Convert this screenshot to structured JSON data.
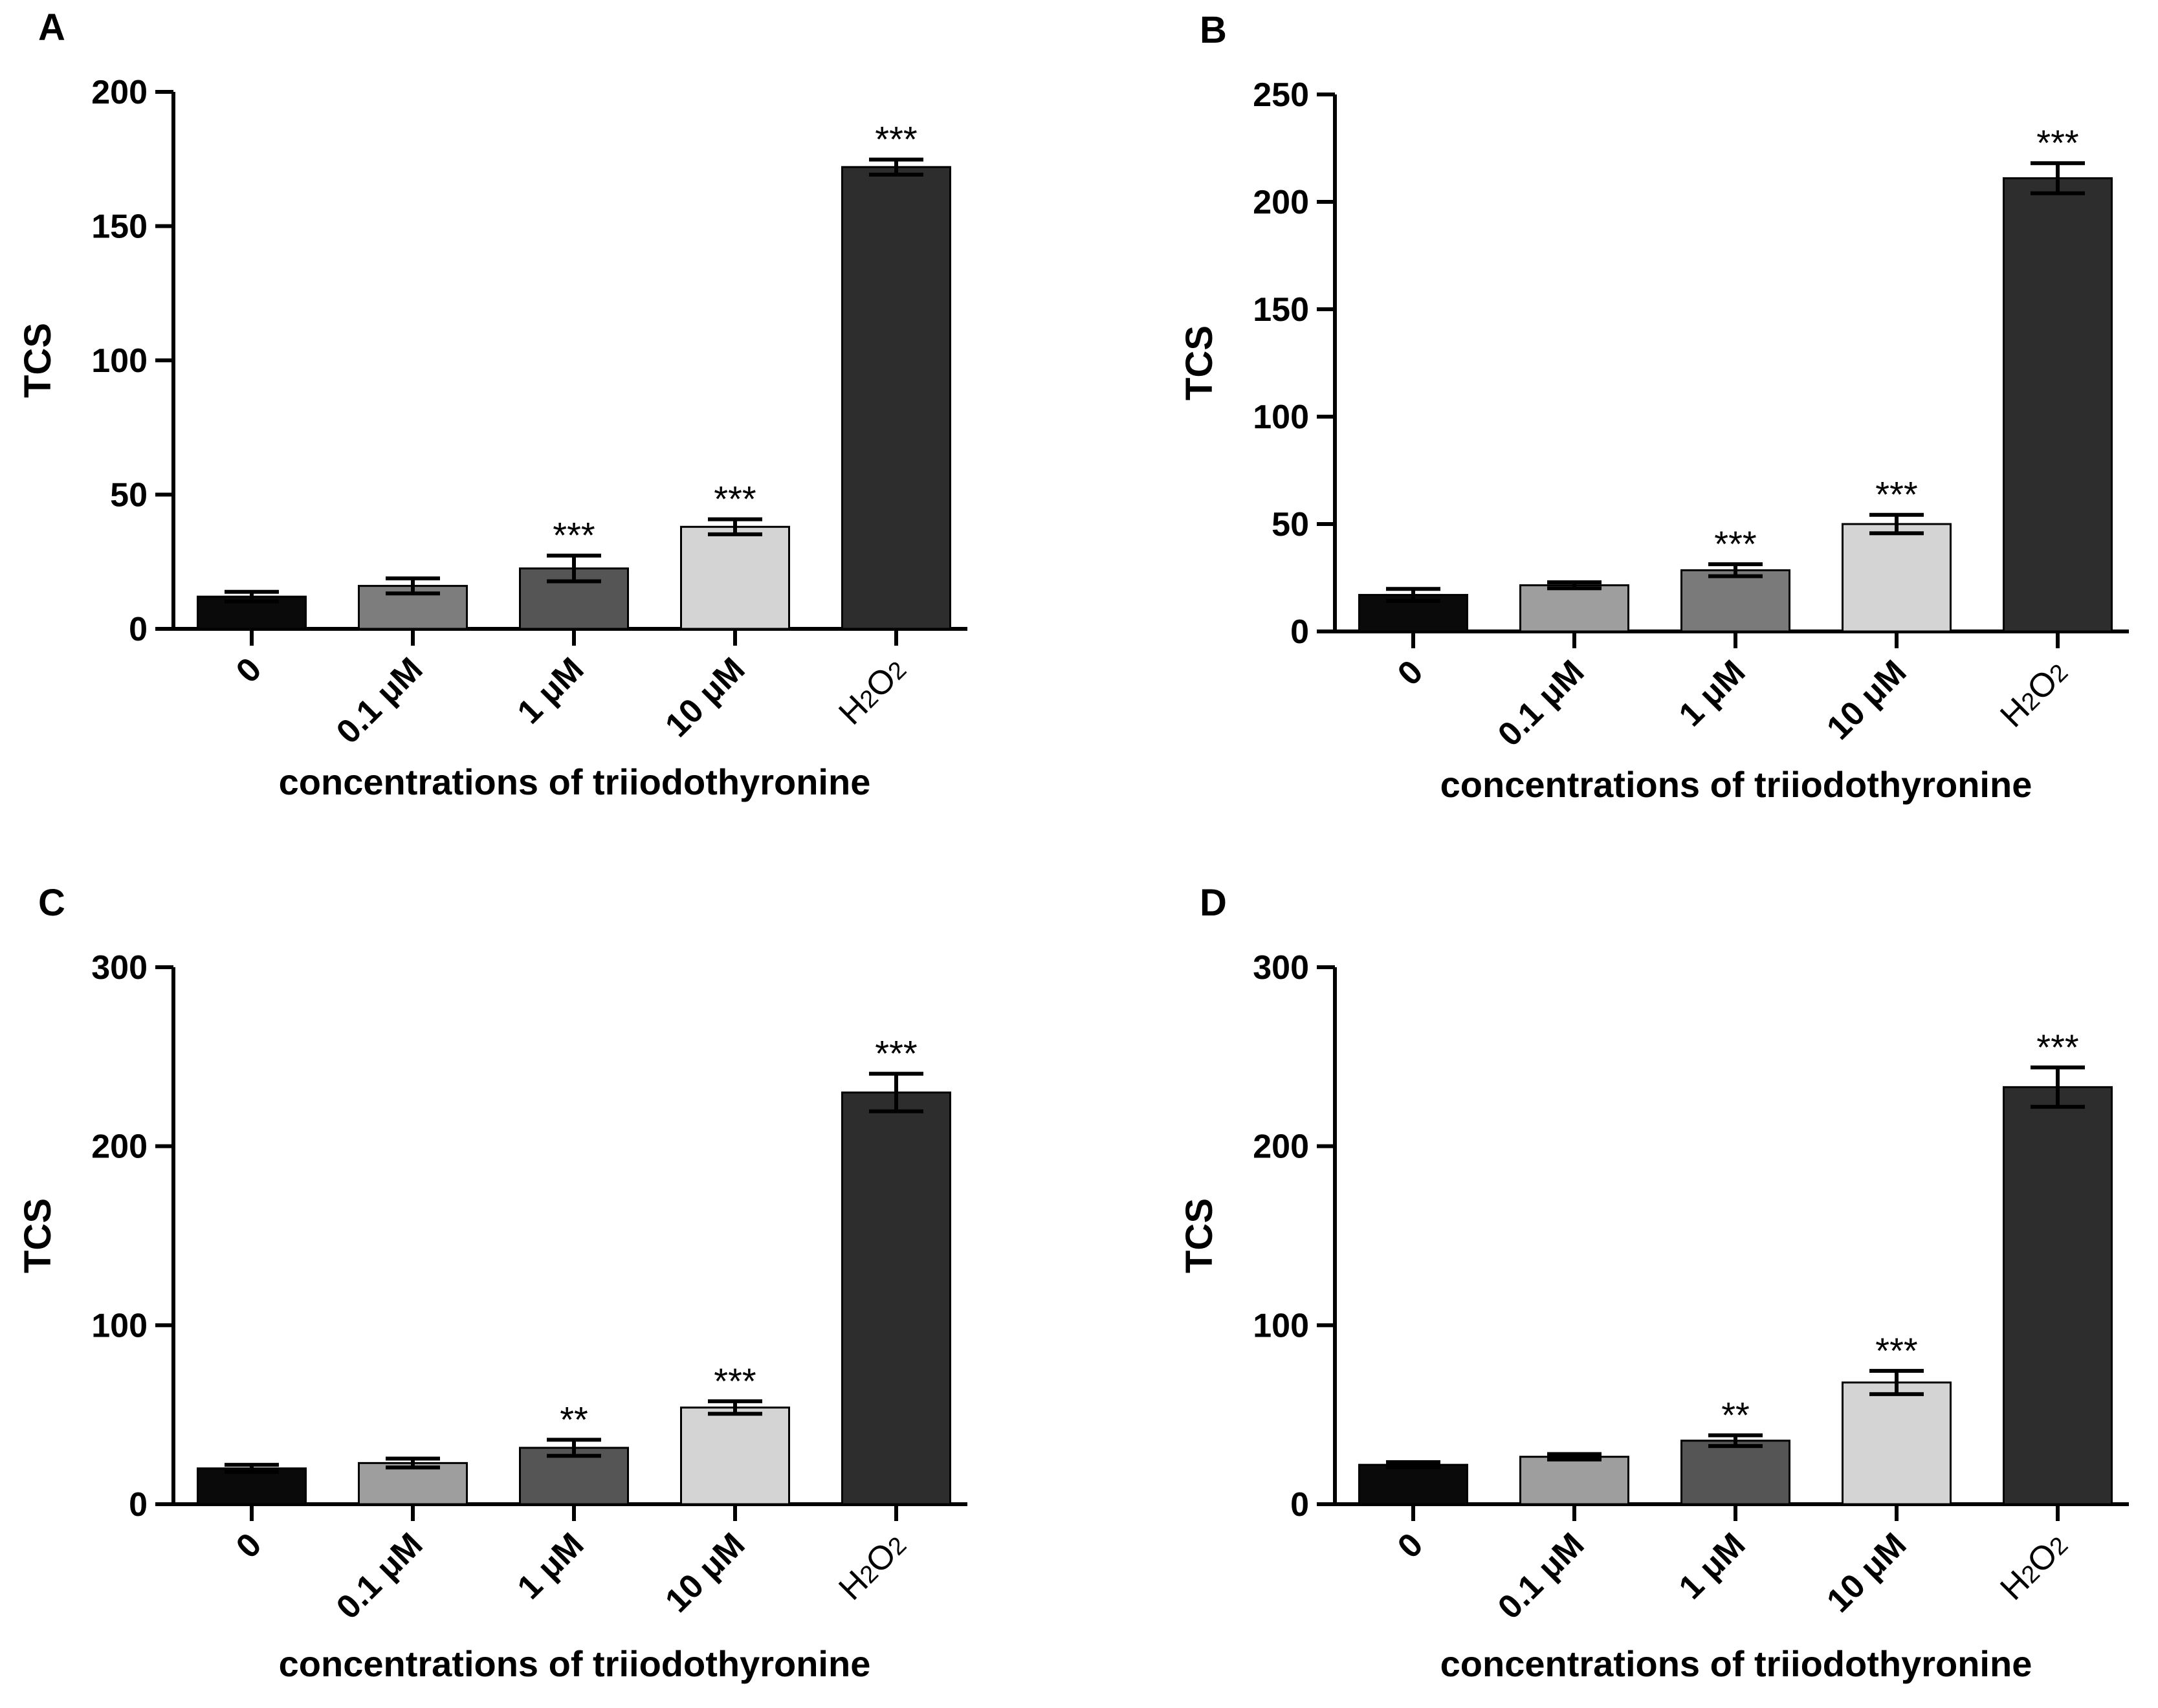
{
  "chart_data": [
    {
      "panel_label": "A",
      "type": "bar",
      "categories": [
        "0",
        "0.1 μM",
        "1 μM",
        "10 μM",
        "H2O2"
      ],
      "values": [
        12,
        16,
        22.5,
        38,
        172
      ],
      "errors": [
        1.8,
        2.8,
        4.8,
        2.8,
        2.8
      ],
      "colors": [
        "#0a0a0a",
        "#7d7d7d",
        "#555555",
        "#d4d4d4",
        "#2d2d2d"
      ],
      "significance": [
        "",
        "",
        "***",
        "***",
        "***"
      ],
      "xlabel": "concentrations of triiodothyronine",
      "ylabel": "TCS",
      "ylim": [
        0,
        200
      ],
      "yticks": [
        0,
        50,
        100,
        150,
        200
      ],
      "grid": false,
      "legend": "none"
    },
    {
      "panel_label": "B",
      "type": "bar",
      "categories": [
        "0",
        "0.1 μM",
        "1 μM",
        "10 μM",
        "H2O2"
      ],
      "values": [
        17,
        21.5,
        28.5,
        50,
        211
      ],
      "errors": [
        2.8,
        1.4,
        2.8,
        4.3,
        7
      ],
      "colors": [
        "#0a0a0a",
        "#9e9e9e",
        "#7a7a7a",
        "#d4d4d4",
        "#2d2d2d"
      ],
      "significance": [
        "",
        "",
        "***",
        "***",
        "***"
      ],
      "xlabel": "concentrations of triiodothyronine",
      "ylabel": "TCS",
      "ylim": [
        0,
        250
      ],
      "yticks": [
        0,
        50,
        100,
        150,
        200,
        250
      ],
      "grid": false,
      "legend": "none"
    },
    {
      "panel_label": "C",
      "type": "bar",
      "categories": [
        "0",
        "0.1 μM",
        "1 μM",
        "10 μM",
        "H2O2"
      ],
      "values": [
        20,
        23,
        31.5,
        54,
        230
      ],
      "errors": [
        2,
        2.5,
        4.5,
        3.5,
        10.5
      ],
      "colors": [
        "#0a0a0a",
        "#9e9e9e",
        "#555555",
        "#d4d4d4",
        "#2d2d2d"
      ],
      "significance": [
        "",
        "",
        "**",
        "***",
        "***"
      ],
      "xlabel": "concentrations of triiodothyronine",
      "ylabel": "TCS",
      "ylim": [
        0,
        300
      ],
      "yticks": [
        0,
        100,
        200,
        300
      ],
      "grid": false,
      "legend": "none"
    },
    {
      "panel_label": "D",
      "type": "bar",
      "categories": [
        "0",
        "0.1 μM",
        "1 μM",
        "10 μM",
        "H2O2"
      ],
      "values": [
        22,
        26.5,
        35.5,
        68,
        233
      ],
      "errors": [
        1.5,
        1.5,
        3,
        6.5,
        11
      ],
      "colors": [
        "#0a0a0a",
        "#9e9e9e",
        "#555555",
        "#d4d4d4",
        "#2d2d2d"
      ],
      "significance": [
        "",
        "",
        "**",
        "***",
        "***"
      ],
      "xlabel": "concentrations of triiodothyronine",
      "ylabel": "TCS",
      "ylim": [
        0,
        300
      ],
      "yticks": [
        0,
        100,
        200,
        300
      ],
      "grid": false,
      "legend": "none"
    }
  ]
}
